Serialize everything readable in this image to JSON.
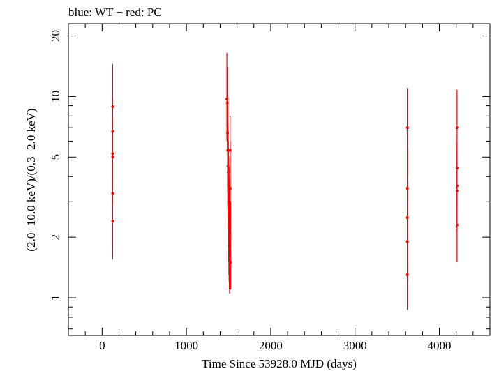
{
  "chart_data": {
    "type": "scatter",
    "title": "blue: WT − red: PC",
    "xlabel": "Time Since 53928.0 MJD (days)",
    "ylabel": "(2.0−10.0 keV)/(0.3−2.0 keV)",
    "xlim": [
      -400,
      4600
    ],
    "ylim": [
      0.65,
      23
    ],
    "yscale": "log",
    "x_ticks": [
      0,
      1000,
      2000,
      3000,
      4000
    ],
    "x_tick_labels": [
      "0",
      "1000",
      "2000",
      "3000",
      "4000"
    ],
    "y_ticks": [
      1,
      2,
      5,
      10,
      20
    ],
    "y_tick_labels": [
      "1",
      "2",
      "5",
      "10",
      "20"
    ],
    "grid": false,
    "series": [
      {
        "color": "#ff0000",
        "points": [
          {
            "x": 125,
            "y": 8.9,
            "ylo": 5.0,
            "yhi": 14.5
          },
          {
            "x": 125,
            "y": 6.7,
            "ylo": 3.8,
            "yhi": 10.0
          },
          {
            "x": 125,
            "y": 5.2,
            "ylo": 3.0,
            "yhi": 7.8
          },
          {
            "x": 125,
            "y": 5.0,
            "ylo": 2.9,
            "yhi": 7.5
          },
          {
            "x": 125,
            "y": 3.3,
            "ylo": 1.8,
            "yhi": 5.5
          },
          {
            "x": 125,
            "y": 2.4,
            "ylo": 1.55,
            "yhi": 3.6
          },
          {
            "x": 1480,
            "y": 9.7,
            "ylo": 6.0,
            "yhi": 16.5
          },
          {
            "x": 1485,
            "y": 9.3,
            "ylo": 5.5,
            "yhi": 14.0
          },
          {
            "x": 1488,
            "y": 6.6,
            "ylo": 3.5,
            "yhi": 10.0
          },
          {
            "x": 1490,
            "y": 5.4,
            "ylo": 2.8,
            "yhi": 9.0
          },
          {
            "x": 1492,
            "y": 4.5,
            "ylo": 2.5,
            "yhi": 7.5
          },
          {
            "x": 1495,
            "y": 4.2,
            "ylo": 2.2,
            "yhi": 7.0
          },
          {
            "x": 1498,
            "y": 3.4,
            "ylo": 1.8,
            "yhi": 6.0
          },
          {
            "x": 1500,
            "y": 3.0,
            "ylo": 1.5,
            "yhi": 5.5
          },
          {
            "x": 1503,
            "y": 2.6,
            "ylo": 1.3,
            "yhi": 5.0
          },
          {
            "x": 1506,
            "y": 2.3,
            "ylo": 1.2,
            "yhi": 4.5
          },
          {
            "x": 1509,
            "y": 2.0,
            "ylo": 1.1,
            "yhi": 3.8
          },
          {
            "x": 1512,
            "y": 1.7,
            "ylo": 1.05,
            "yhi": 3.2
          },
          {
            "x": 1515,
            "y": 2.1,
            "ylo": 1.1,
            "yhi": 4.0
          },
          {
            "x": 1518,
            "y": 5.4,
            "ylo": 2.5,
            "yhi": 8.0
          },
          {
            "x": 1520,
            "y": 3.5,
            "ylo": 1.8,
            "yhi": 6.0
          },
          {
            "x": 1523,
            "y": 1.5,
            "ylo": 1.1,
            "yhi": 3.0
          },
          {
            "x": 3620,
            "y": 7.0,
            "ylo": 4.0,
            "yhi": 11.0
          },
          {
            "x": 3620,
            "y": 3.5,
            "ylo": 2.0,
            "yhi": 5.5
          },
          {
            "x": 3620,
            "y": 2.5,
            "ylo": 1.5,
            "yhi": 3.8
          },
          {
            "x": 3620,
            "y": 1.9,
            "ylo": 1.2,
            "yhi": 3.0
          },
          {
            "x": 3620,
            "y": 1.3,
            "ylo": 0.87,
            "yhi": 2.0
          },
          {
            "x": 4210,
            "y": 7.0,
            "ylo": 4.5,
            "yhi": 10.8
          },
          {
            "x": 4210,
            "y": 4.4,
            "ylo": 2.8,
            "yhi": 6.0
          },
          {
            "x": 4210,
            "y": 3.6,
            "ylo": 2.3,
            "yhi": 5.5
          },
          {
            "x": 4210,
            "y": 3.4,
            "ylo": 2.1,
            "yhi": 5.0
          },
          {
            "x": 4210,
            "y": 2.3,
            "ylo": 1.5,
            "yhi": 3.5
          }
        ]
      }
    ]
  }
}
